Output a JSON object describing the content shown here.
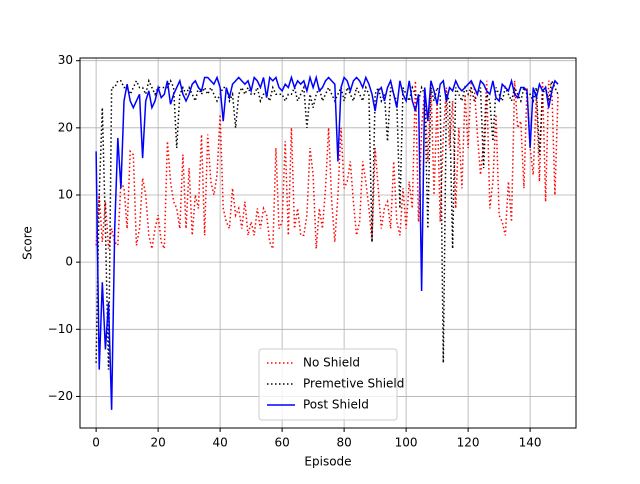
{
  "chart_data": {
    "type": "line",
    "xlabel": "Episode",
    "ylabel": "Score",
    "x": [
      0,
      1,
      2,
      3,
      4,
      5,
      6,
      7,
      8,
      9,
      10,
      11,
      12,
      13,
      14,
      15,
      16,
      17,
      18,
      19,
      20,
      21,
      22,
      23,
      24,
      25,
      26,
      27,
      28,
      29,
      30,
      31,
      32,
      33,
      34,
      35,
      36,
      37,
      38,
      39,
      40,
      41,
      42,
      43,
      44,
      45,
      46,
      47,
      48,
      49,
      50,
      51,
      52,
      53,
      54,
      55,
      56,
      57,
      58,
      59,
      60,
      61,
      62,
      63,
      64,
      65,
      66,
      67,
      68,
      69,
      70,
      71,
      72,
      73,
      74,
      75,
      76,
      77,
      78,
      79,
      80,
      81,
      82,
      83,
      84,
      85,
      86,
      87,
      88,
      89,
      90,
      91,
      92,
      93,
      94,
      95,
      96,
      97,
      98,
      99,
      100,
      101,
      102,
      103,
      104,
      105,
      106,
      107,
      108,
      109,
      110,
      111,
      112,
      113,
      114,
      115,
      116,
      117,
      118,
      119,
      120,
      121,
      122,
      123,
      124,
      125,
      126,
      127,
      128,
      129,
      130,
      131,
      132,
      133,
      134,
      135,
      136,
      137,
      138,
      139,
      140,
      141,
      142,
      143,
      144,
      145,
      146,
      147,
      148,
      149
    ],
    "series": [
      {
        "name": "No Shield",
        "color": "#ff0000",
        "style": "dotted",
        "values": [
          2.5,
          10,
          3,
          9,
          2,
          5,
          3,
          2.5,
          12,
          11,
          5,
          16.5,
          16,
          2.5,
          5,
          12.5,
          10,
          4,
          2,
          5,
          7,
          3,
          2,
          18,
          12,
          9,
          8,
          5,
          16,
          5,
          14,
          4,
          10,
          8,
          19,
          4,
          19,
          12,
          10,
          13,
          22,
          8,
          6,
          5,
          11,
          7,
          8,
          5,
          9,
          4,
          6,
          4,
          8,
          5,
          8,
          7,
          3,
          2,
          17,
          5,
          6,
          18,
          4,
          20,
          5,
          8,
          4,
          4,
          7,
          17,
          13,
          2,
          8,
          5,
          11,
          20,
          9,
          3,
          10,
          20,
          11,
          12,
          15,
          9,
          4,
          6,
          15,
          12,
          8,
          3,
          17,
          11,
          5,
          8,
          9,
          5,
          15,
          6,
          4,
          11,
          5,
          12,
          8,
          27,
          6,
          20,
          26,
          15,
          27,
          10,
          24,
          6,
          19,
          26,
          17,
          24,
          8,
          20,
          11,
          25,
          17,
          27,
          26,
          19,
          13,
          18,
          27,
          8,
          12,
          22,
          7,
          6,
          4,
          12,
          6,
          27,
          20,
          21,
          11,
          26,
          17,
          13,
          25,
          12,
          27,
          9,
          27,
          26,
          10,
          25
        ]
      },
      {
        "name": "Premetive Shield",
        "color": "#000000",
        "style": "dotted",
        "values": [
          -15,
          10,
          23,
          5,
          -16,
          26,
          26,
          27,
          27,
          26,
          26,
          25,
          26,
          27,
          26,
          26,
          25,
          27,
          26,
          25,
          26,
          26,
          26,
          26,
          27,
          26,
          17,
          25,
          26,
          25,
          26,
          25,
          24,
          26,
          25,
          26,
          25,
          26,
          25,
          24,
          25,
          26,
          26,
          24,
          25,
          20,
          25,
          26,
          25,
          26,
          25,
          25,
          26,
          24,
          25,
          25,
          24,
          26,
          25,
          25,
          25,
          24,
          25,
          25,
          26,
          24,
          25,
          26,
          20,
          25,
          23,
          25,
          26,
          24,
          25,
          26,
          25,
          24,
          25,
          26,
          24,
          26,
          25,
          24,
          26,
          25,
          24,
          26,
          25,
          3,
          25,
          26,
          24,
          25,
          18,
          26,
          25,
          24,
          8,
          26,
          25,
          24,
          26,
          25,
          24,
          26,
          25,
          5,
          26,
          24,
          26,
          25,
          -15,
          25,
          24,
          2,
          26,
          25,
          24,
          26,
          25,
          26,
          24,
          25,
          26,
          14,
          25,
          24,
          18,
          26,
          25,
          24,
          26,
          25,
          24,
          26,
          25,
          24,
          26,
          25,
          25,
          24,
          26,
          16,
          25,
          26,
          24,
          27,
          26,
          25
        ]
      },
      {
        "name": "Post Shield",
        "color": "#0000ff",
        "style": "solid",
        "values": [
          16.5,
          -16,
          -3,
          -13,
          -6,
          -22,
          5,
          18.5,
          11,
          24,
          26.5,
          24,
          23,
          24,
          25,
          15.5,
          24,
          25.5,
          23,
          24,
          26,
          24.5,
          25,
          27,
          23.5,
          25,
          26,
          27,
          25,
          24,
          25,
          26.5,
          27,
          26,
          25.5,
          27.5,
          27.5,
          27,
          26.5,
          27.5,
          26,
          21,
          26,
          24.5,
          26.5,
          27,
          27.5,
          27,
          26.5,
          27,
          25.5,
          27.5,
          27,
          26,
          27.5,
          24.5,
          27.5,
          27,
          27.5,
          26,
          25.5,
          26.5,
          26,
          27.5,
          26,
          27,
          26.5,
          27,
          25.5,
          27.5,
          26,
          27.5,
          25.5,
          26,
          27,
          27.5,
          27,
          26.5,
          15,
          26,
          27.5,
          27,
          25.5,
          27,
          27.5,
          27,
          26,
          27.5,
          26.5,
          25,
          22.5,
          25.5,
          26,
          24,
          26,
          27,
          25,
          23,
          27,
          25,
          24,
          27,
          24,
          22.5,
          25,
          -4.3,
          26,
          21,
          27,
          25.5,
          23.5,
          26.5,
          27,
          24,
          26,
          25.5,
          27,
          26,
          25.5,
          26,
          26.5,
          27,
          26,
          25,
          27,
          26.5,
          25.5,
          25,
          27,
          24.5,
          24,
          26.5,
          26,
          25.5,
          27,
          25,
          24.5,
          26,
          26,
          25.5,
          17,
          26,
          24.5,
          26.5,
          25.5,
          26,
          23,
          25.5,
          27,
          26.5
        ]
      }
    ],
    "xlim": [
      -5.2,
      154.8
    ],
    "ylim": [
      -24.7,
      30.4
    ],
    "xticks": [
      0,
      20,
      40,
      60,
      80,
      100,
      120,
      140
    ],
    "yticks": [
      {
        "value": -20,
        "label": "−20"
      },
      {
        "value": -10,
        "label": "−10"
      },
      0,
      10,
      20,
      30
    ],
    "grid": true,
    "legend": "lower center"
  }
}
